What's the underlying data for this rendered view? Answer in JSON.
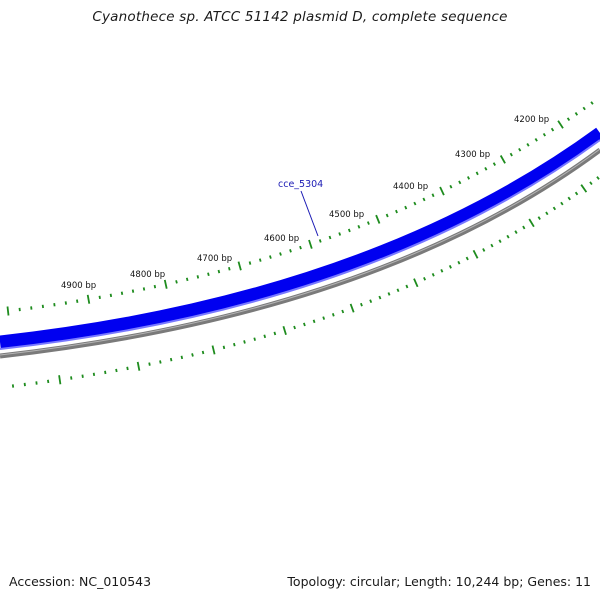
{
  "title": "Cyanothece sp. ATCC 51142 plasmid D, complete sequence",
  "footer": {
    "accession": "Accession: NC_010543",
    "summary": "Topology: circular; Length: 10,244 bp; Genes: 11"
  },
  "colors": {
    "forward_strand": "#0000f0",
    "reverse_strand": "#7a7a7a",
    "ticks": "#1e8c1e",
    "gene_label": "#1a1ab4"
  },
  "map": {
    "tick_labels": [
      {
        "bp": 4200,
        "label": "4200 bp"
      },
      {
        "bp": 4300,
        "label": "4300 bp"
      },
      {
        "bp": 4400,
        "label": "4400 bp"
      },
      {
        "bp": 4500,
        "label": "4500 bp"
      },
      {
        "bp": 4600,
        "label": "4600 bp"
      },
      {
        "bp": 4700,
        "label": "4700 bp"
      },
      {
        "bp": 4800,
        "label": "4800 bp"
      },
      {
        "bp": 4900,
        "label": "4900 bp"
      }
    ],
    "genes": [
      {
        "name": "cce_5304"
      }
    ]
  }
}
